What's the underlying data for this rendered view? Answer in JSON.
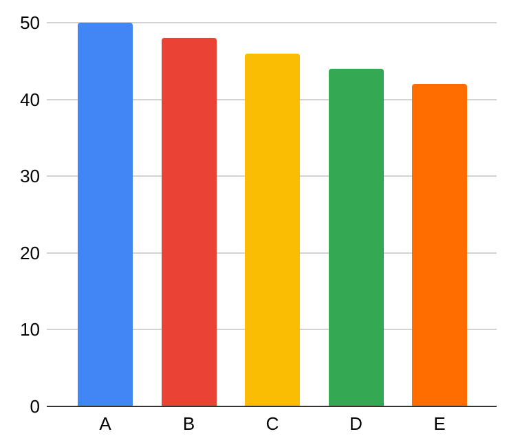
{
  "chart_data": {
    "type": "bar",
    "categories": [
      "A",
      "B",
      "C",
      "D",
      "E"
    ],
    "values": [
      50,
      48,
      46,
      44,
      42
    ],
    "bar_colors": [
      "#4285F4",
      "#EA4335",
      "#FBBC04",
      "#34A853",
      "#FF6D01"
    ],
    "title": "",
    "xlabel": "",
    "ylabel": "",
    "ylim": [
      0,
      50
    ],
    "yticks": [
      0,
      10,
      20,
      30,
      40,
      50
    ],
    "grid": true,
    "legend_position": "none",
    "gridline_color": "#d2d2d2",
    "axis_line_color": "#333333",
    "tick_label_color": "#000000",
    "background_color": "#ffffff"
  }
}
